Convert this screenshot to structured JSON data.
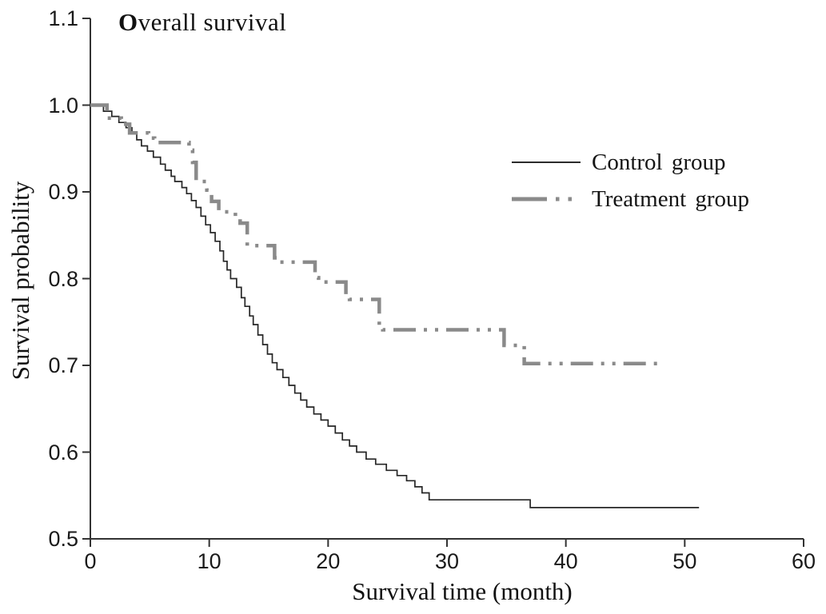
{
  "chart_data": {
    "type": "line",
    "subtype": "kaplan_meier_step_curves",
    "title": "Overall survival",
    "xlabel": "Survival time (month)",
    "ylabel": "Survival probability",
    "xlim": [
      0,
      60
    ],
    "ylim": [
      0.5,
      1.1
    ],
    "x_ticks": [
      "0",
      "10",
      "20",
      "30",
      "40",
      "50",
      "60"
    ],
    "y_ticks": [
      "1.1",
      "1.0",
      "0.9",
      "0.8",
      "0.7",
      "0.6",
      "0.5"
    ],
    "grid": false,
    "legend_position": "upper right inside plot",
    "axis_color": "#333333",
    "series": [
      {
        "name": "Control group",
        "line_style": "solid",
        "color": "#262626",
        "width": 1.7,
        "points": [
          [
            0,
            1.0
          ],
          [
            1.1,
            0.993
          ],
          [
            1.8,
            0.987
          ],
          [
            2.4,
            0.98
          ],
          [
            3.0,
            0.974
          ],
          [
            3.5,
            0.967
          ],
          [
            3.9,
            0.96
          ],
          [
            4.3,
            0.953
          ],
          [
            4.8,
            0.947
          ],
          [
            5.3,
            0.94
          ],
          [
            5.9,
            0.932
          ],
          [
            6.3,
            0.925
          ],
          [
            6.8,
            0.918
          ],
          [
            7.1,
            0.912
          ],
          [
            7.7,
            0.905
          ],
          [
            8.1,
            0.898
          ],
          [
            8.5,
            0.89
          ],
          [
            8.9,
            0.882
          ],
          [
            9.3,
            0.872
          ],
          [
            9.7,
            0.862
          ],
          [
            10.1,
            0.853
          ],
          [
            10.5,
            0.843
          ],
          [
            10.9,
            0.832
          ],
          [
            11.2,
            0.82
          ],
          [
            11.5,
            0.81
          ],
          [
            11.8,
            0.8
          ],
          [
            12.3,
            0.79
          ],
          [
            12.7,
            0.778
          ],
          [
            13.0,
            0.768
          ],
          [
            13.4,
            0.757
          ],
          [
            13.7,
            0.747
          ],
          [
            14.1,
            0.735
          ],
          [
            14.5,
            0.724
          ],
          [
            14.9,
            0.713
          ],
          [
            15.3,
            0.703
          ],
          [
            15.7,
            0.695
          ],
          [
            16.2,
            0.686
          ],
          [
            16.7,
            0.677
          ],
          [
            17.2,
            0.668
          ],
          [
            17.7,
            0.66
          ],
          [
            18.2,
            0.652
          ],
          [
            18.8,
            0.644
          ],
          [
            19.4,
            0.637
          ],
          [
            20.0,
            0.63
          ],
          [
            20.6,
            0.622
          ],
          [
            21.2,
            0.614
          ],
          [
            21.8,
            0.607
          ],
          [
            22.4,
            0.6
          ],
          [
            23.2,
            0.592
          ],
          [
            24.0,
            0.586
          ],
          [
            24.9,
            0.579
          ],
          [
            25.8,
            0.573
          ],
          [
            26.6,
            0.567
          ],
          [
            27.3,
            0.56
          ],
          [
            27.9,
            0.553
          ],
          [
            28.5,
            0.545
          ],
          [
            37.0,
            0.536
          ],
          [
            51.2,
            0.536
          ]
        ]
      },
      {
        "name": "Treatment group",
        "line_style": "dash-dot-dot",
        "color": "#8a8a8a",
        "width": 4.5,
        "points": [
          [
            0,
            1.0
          ],
          [
            1.4,
            0.985
          ],
          [
            2.6,
            0.978
          ],
          [
            3.3,
            0.968
          ],
          [
            4.9,
            0.962
          ],
          [
            5.4,
            0.957
          ],
          [
            8.3,
            0.948
          ],
          [
            8.6,
            0.934
          ],
          [
            8.9,
            0.912
          ],
          [
            9.8,
            0.902
          ],
          [
            10.2,
            0.889
          ],
          [
            10.8,
            0.877
          ],
          [
            12.2,
            0.87
          ],
          [
            12.6,
            0.864
          ],
          [
            13.2,
            0.838
          ],
          [
            15.5,
            0.824
          ],
          [
            15.8,
            0.819
          ],
          [
            18.9,
            0.801
          ],
          [
            19.2,
            0.796
          ],
          [
            21.5,
            0.781
          ],
          [
            21.8,
            0.776
          ],
          [
            24.3,
            0.746
          ],
          [
            24.6,
            0.741
          ],
          [
            34.8,
            0.723
          ],
          [
            36.5,
            0.702
          ],
          [
            47.7,
            0.702
          ]
        ]
      }
    ]
  }
}
